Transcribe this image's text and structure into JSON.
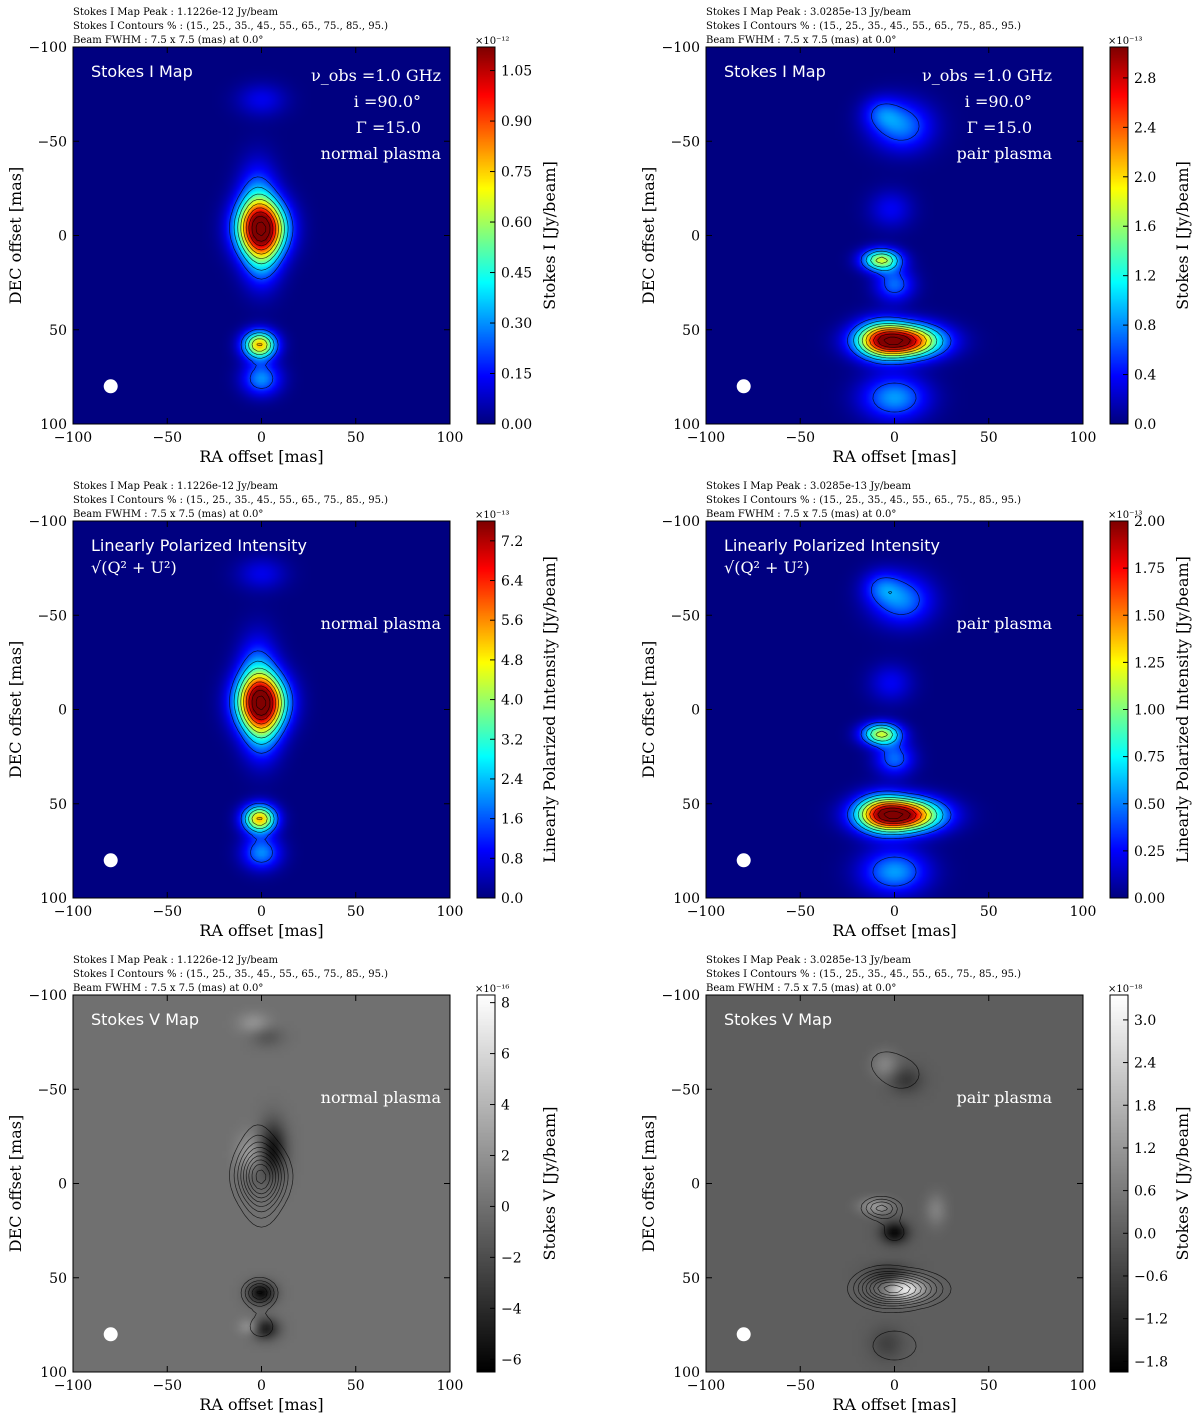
{
  "header_labels": {
    "peak_label": "Stokes I Map Peak :",
    "contours_label": "Stokes I Contours % :",
    "beam_label": "Beam FWHM :"
  },
  "axis_labels": {
    "xlabel": "RA offset [mas]",
    "ylabel": "DEC offset [mas]"
  },
  "chart_data": [
    {
      "type": "heatmap",
      "row": 0,
      "col": 0,
      "title": "Stokes I Map",
      "colormap": "jet",
      "peak": "1.1226e-12 Jy/beam",
      "contours": "(15., 25., 35., 45., 55., 65., 75., 85., 95.)",
      "beam": "7.5 x 7.5 (mas) at 0.0°",
      "info": [
        "ν_obs =1.0 GHz",
        "i =90.0°",
        "Γ =15.0",
        "normal plasma"
      ],
      "xlabel": "RA offset [mas]",
      "ylabel": "DEC offset [mas]",
      "xlim": [
        -100,
        100
      ],
      "ylim": [
        100,
        -100
      ],
      "xticks": [
        -100,
        -50,
        0,
        50,
        100
      ],
      "yticks": [
        -100,
        -50,
        0,
        50,
        100
      ],
      "colorbar": {
        "label": "Stokes I [Jy/beam]",
        "exponent": "×10⁻¹²",
        "min": 0,
        "max": 1.12,
        "ticks": [
          "0.00",
          "0.15",
          "0.30",
          "0.45",
          "0.60",
          "0.75",
          "0.90",
          "1.05"
        ]
      },
      "features": [
        {
          "ra": 0,
          "dec": -72,
          "sx": 9,
          "sy": 6,
          "amp": 0.12
        },
        {
          "ra": -2,
          "dec": -18,
          "sx": 7,
          "sy": 14,
          "amp": 0.28
        },
        {
          "ra": 0,
          "dec": -4,
          "sx": 9,
          "sy": 10,
          "amp": 1.05
        },
        {
          "ra": 0,
          "dec": 10,
          "sx": 7,
          "sy": 12,
          "amp": 0.32
        },
        {
          "ra": -1,
          "dec": 58,
          "sx": 6,
          "sy": 5,
          "amp": 0.78
        },
        {
          "ra": 0,
          "dec": 76,
          "sx": 7,
          "sy": 6,
          "amp": 0.3
        }
      ]
    },
    {
      "type": "heatmap",
      "row": 0,
      "col": 1,
      "title": "Stokes I Map",
      "colormap": "jet",
      "peak": "3.0285e-13 Jy/beam",
      "contours": "(15., 25., 35., 45., 55., 65., 75., 85., 95.)",
      "beam": "7.5 x 7.5 (mas) at 0.0°",
      "info": [
        "ν_obs =1.0 GHz",
        "i =90.0°",
        "Γ =15.0",
        "pair plasma"
      ],
      "xlabel": "RA offset [mas]",
      "ylabel": "DEC offset [mas]",
      "xlim": [
        -100,
        100
      ],
      "ylim": [
        100,
        -100
      ],
      "xticks": [
        -100,
        -50,
        0,
        50,
        100
      ],
      "yticks": [
        -100,
        -50,
        0,
        50,
        100
      ],
      "colorbar": {
        "label": "Stokes I [Jy/beam]",
        "exponent": "×10⁻¹³",
        "min": 0,
        "max": 3.05,
        "ticks": [
          "0.0",
          "0.4",
          "0.8",
          "1.2",
          "1.6",
          "2.0",
          "2.4",
          "2.8"
        ]
      },
      "features": [
        {
          "ra": 4,
          "dec": -58,
          "sx": 11,
          "sy": 9,
          "amp": 0.75
        },
        {
          "ra": -7,
          "dec": -65,
          "sx": 7,
          "sy": 6,
          "amp": 0.45
        },
        {
          "ra": -7,
          "dec": 13,
          "sx": 7,
          "sy": 4,
          "amp": 1.75
        },
        {
          "ra": -2,
          "dec": -14,
          "sx": 8,
          "sy": 7,
          "amp": 0.35
        },
        {
          "ra": 0,
          "dec": 26,
          "sx": 7,
          "sy": 6,
          "amp": 0.7
        },
        {
          "ra": 4,
          "dec": 56,
          "sx": 14,
          "sy": 6,
          "amp": 3.0
        },
        {
          "ra": -8,
          "dec": 55,
          "sx": 9,
          "sy": 7,
          "amp": 1.1
        },
        {
          "ra": 0,
          "dec": 86,
          "sx": 12,
          "sy": 8,
          "amp": 0.85
        }
      ]
    },
    {
      "type": "heatmap",
      "row": 1,
      "col": 0,
      "title": "Linearly Polarized Intensity",
      "title_sub": "√(Q² + U²)",
      "colormap": "jet",
      "peak": "1.1226e-12 Jy/beam",
      "contours": "(15., 25., 35., 45., 55., 65., 75., 85., 95.)",
      "beam": "7.5 x 7.5 (mas) at 0.0°",
      "info": [
        "normal plasma"
      ],
      "xlabel": "RA offset [mas]",
      "ylabel": "DEC offset [mas]",
      "xlim": [
        -100,
        100
      ],
      "ylim": [
        100,
        -100
      ],
      "xticks": [
        -100,
        -50,
        0,
        50,
        100
      ],
      "yticks": [
        -100,
        -50,
        0,
        50,
        100
      ],
      "colorbar": {
        "label": "Linearly Polarized Intensity [Jy/beam]",
        "exponent": "×10⁻¹³",
        "min": 0,
        "max": 7.6,
        "ticks": [
          "0.0",
          "0.8",
          "1.6",
          "2.4",
          "3.2",
          "4.0",
          "4.8",
          "5.6",
          "6.4",
          "7.2"
        ]
      },
      "features": [
        {
          "ra": 0,
          "dec": -72,
          "sx": 9,
          "sy": 6,
          "amp": 0.8
        },
        {
          "ra": -2,
          "dec": -18,
          "sx": 7,
          "sy": 14,
          "amp": 1.9
        },
        {
          "ra": 0,
          "dec": -4,
          "sx": 9,
          "sy": 10,
          "amp": 7.1
        },
        {
          "ra": 0,
          "dec": 10,
          "sx": 7,
          "sy": 12,
          "amp": 2.2
        },
        {
          "ra": -1,
          "dec": 58,
          "sx": 6,
          "sy": 5,
          "amp": 5.3
        },
        {
          "ra": 0,
          "dec": 76,
          "sx": 7,
          "sy": 6,
          "amp": 2.0
        }
      ]
    },
    {
      "type": "heatmap",
      "row": 1,
      "col": 1,
      "title": "Linearly Polarized Intensity",
      "title_sub": "√(Q² + U²)",
      "colormap": "jet",
      "peak": "3.0285e-13 Jy/beam",
      "contours": "(15., 25., 35., 45., 55., 65., 75., 85., 95.)",
      "beam": "7.5 x 7.5 (mas) at 0.0°",
      "info": [
        "pair plasma"
      ],
      "xlabel": "RA offset [mas]",
      "ylabel": "DEC offset [mas]",
      "xlim": [
        -100,
        100
      ],
      "ylim": [
        100,
        -100
      ],
      "xticks": [
        -100,
        -50,
        0,
        50,
        100
      ],
      "yticks": [
        -100,
        -50,
        0,
        50,
        100
      ],
      "colorbar": {
        "label": "Linearly Polarized Intensity [Jy/beam]",
        "exponent": "×10⁻¹³",
        "min": 0,
        "max": 2.0,
        "ticks": [
          "0.00",
          "0.25",
          "0.50",
          "0.75",
          "1.00",
          "1.25",
          "1.50",
          "1.75",
          "2.00"
        ]
      },
      "features": [
        {
          "ra": 4,
          "dec": -58,
          "sx": 11,
          "sy": 9,
          "amp": 0.5
        },
        {
          "ra": -7,
          "dec": -65,
          "sx": 7,
          "sy": 6,
          "amp": 0.3
        },
        {
          "ra": -7,
          "dec": 13,
          "sx": 7,
          "sy": 4,
          "amp": 1.15
        },
        {
          "ra": -2,
          "dec": -14,
          "sx": 8,
          "sy": 7,
          "amp": 0.23
        },
        {
          "ra": 0,
          "dec": 26,
          "sx": 7,
          "sy": 6,
          "amp": 0.46
        },
        {
          "ra": 4,
          "dec": 56,
          "sx": 14,
          "sy": 6,
          "amp": 1.98
        },
        {
          "ra": -8,
          "dec": 55,
          "sx": 9,
          "sy": 7,
          "amp": 0.72
        },
        {
          "ra": 0,
          "dec": 86,
          "sx": 12,
          "sy": 8,
          "amp": 0.56
        }
      ]
    },
    {
      "type": "heatmap",
      "row": 2,
      "col": 0,
      "title": "Stokes V Map",
      "colormap": "gray",
      "peak": "1.1226e-12 Jy/beam",
      "contours": "(15., 25., 35., 45., 55., 65., 75., 85., 95.)",
      "beam": "7.5 x 7.5 (mas) at 0.0°",
      "info": [
        "normal plasma"
      ],
      "xlabel": "RA offset [mas]",
      "ylabel": "DEC offset [mas]",
      "xlim": [
        -100,
        100
      ],
      "ylim": [
        100,
        -100
      ],
      "xticks": [
        -100,
        -50,
        0,
        50,
        100
      ],
      "yticks": [
        -100,
        -50,
        0,
        50,
        100
      ],
      "colorbar": {
        "label": "Stokes V [Jy/beam]",
        "exponent": "×10⁻¹⁶",
        "min": -6.5,
        "max": 8.3,
        "ticks": [
          "−6",
          "−4",
          "−2",
          "0",
          "2",
          "4",
          "6",
          "8"
        ]
      },
      "features": [
        {
          "ra": 6,
          "dec": -18,
          "sx": 5,
          "sy": 10,
          "amp": -5.5
        },
        {
          "ra": -6,
          "dec": -14,
          "sx": 5,
          "sy": 8,
          "amp": 3.0
        },
        {
          "ra": -4,
          "dec": -85,
          "sx": 6,
          "sy": 4,
          "amp": 2.0
        },
        {
          "ra": 3,
          "dec": -78,
          "sx": 6,
          "sy": 4,
          "amp": -1.6
        },
        {
          "ra": 0,
          "dec": 58,
          "sx": 5,
          "sy": 4,
          "amp": -6.0
        },
        {
          "ra": 2,
          "dec": 77,
          "sx": 5,
          "sy": 4,
          "amp": -5.0
        },
        {
          "ra": -6,
          "dec": 76,
          "sx": 4,
          "sy": 3,
          "amp": 2.5
        },
        {
          "ra": -5,
          "dec": -5,
          "sx": 5,
          "sy": 6,
          "amp": -1.8
        }
      ],
      "contour_features": [
        {
          "ra": -2,
          "dec": -18,
          "sx": 7,
          "sy": 14,
          "amp": 0.28
        },
        {
          "ra": 0,
          "dec": -4,
          "sx": 9,
          "sy": 10,
          "amp": 1.05
        },
        {
          "ra": 0,
          "dec": 10,
          "sx": 7,
          "sy": 12,
          "amp": 0.32
        },
        {
          "ra": -1,
          "dec": 58,
          "sx": 6,
          "sy": 5,
          "amp": 0.78
        },
        {
          "ra": 0,
          "dec": 76,
          "sx": 7,
          "sy": 6,
          "amp": 0.3
        }
      ]
    },
    {
      "type": "heatmap",
      "row": 2,
      "col": 1,
      "title": "Stokes V Map",
      "colormap": "gray",
      "peak": "3.0285e-13 Jy/beam",
      "contours": "(15., 25., 35., 45., 55., 65., 75., 85., 95.)",
      "beam": "7.5 x 7.5 (mas) at 0.0°",
      "info": [
        "pair plasma"
      ],
      "xlabel": "RA offset [mas]",
      "ylabel": "DEC offset [mas]",
      "xlim": [
        -100,
        100
      ],
      "ylim": [
        100,
        -100
      ],
      "xticks": [
        -100,
        -50,
        0,
        50,
        100
      ],
      "yticks": [
        -100,
        -50,
        0,
        50,
        100
      ],
      "colorbar": {
        "label": "Stokes V [Jy/beam]",
        "exponent": "×10⁻¹⁸",
        "min": -1.95,
        "max": 3.35,
        "ticks": [
          "−1.8",
          "−1.2",
          "−0.6",
          "0.0",
          "0.6",
          "1.2",
          "1.8",
          "2.4",
          "3.0"
        ]
      },
      "features": [
        {
          "ra": 0,
          "dec": 26,
          "sx": 5,
          "sy": 4,
          "amp": -1.8
        },
        {
          "ra": 6,
          "dec": 56,
          "sx": 7,
          "sy": 4,
          "amp": 3.0
        },
        {
          "ra": -10,
          "dec": 12,
          "sx": 6,
          "sy": 3,
          "amp": 1.2
        },
        {
          "ra": -5,
          "dec": -63,
          "sx": 5,
          "sy": 5,
          "amp": 0.8
        },
        {
          "ra": 6,
          "dec": -55,
          "sx": 6,
          "sy": 5,
          "amp": -0.8
        },
        {
          "ra": 22,
          "dec": 14,
          "sx": 4,
          "sy": 6,
          "amp": 0.7
        },
        {
          "ra": -4,
          "dec": 85,
          "sx": 6,
          "sy": 6,
          "amp": -0.6
        },
        {
          "ra": -2,
          "dec": 48,
          "sx": 8,
          "sy": 4,
          "amp": -0.9
        }
      ],
      "contour_features": [
        {
          "ra": 4,
          "dec": -58,
          "sx": 11,
          "sy": 9,
          "amp": 0.75
        },
        {
          "ra": -7,
          "dec": -65,
          "sx": 7,
          "sy": 6,
          "amp": 0.45
        },
        {
          "ra": -7,
          "dec": 13,
          "sx": 7,
          "sy": 4,
          "amp": 1.75
        },
        {
          "ra": -2,
          "dec": -14,
          "sx": 8,
          "sy": 7,
          "amp": 0.35
        },
        {
          "ra": 0,
          "dec": 26,
          "sx": 7,
          "sy": 6,
          "amp": 0.7
        },
        {
          "ra": 4,
          "dec": 56,
          "sx": 14,
          "sy": 6,
          "amp": 3.0
        },
        {
          "ra": -8,
          "dec": 55,
          "sx": 9,
          "sy": 7,
          "amp": 1.1
        },
        {
          "ra": 0,
          "dec": 86,
          "sx": 12,
          "sy": 8,
          "amp": 0.85
        }
      ]
    }
  ]
}
